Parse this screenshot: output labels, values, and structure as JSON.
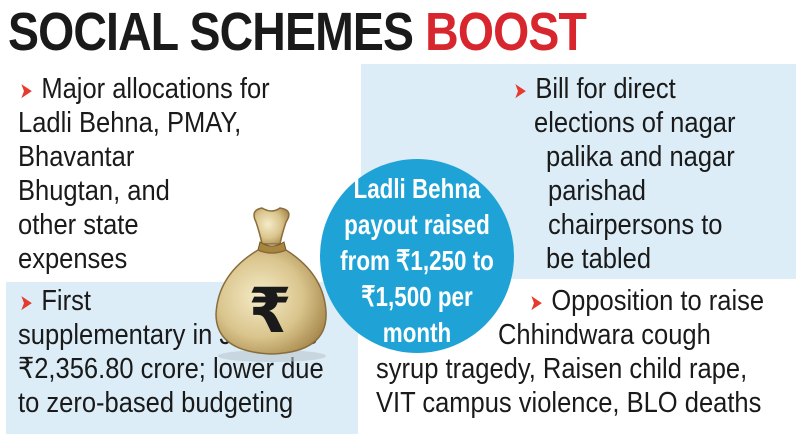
{
  "headline": {
    "part1": "SOCIAL SCHEMES ",
    "part2": "BOOST"
  },
  "colors": {
    "accent_red": "#d7262d",
    "arrow_red": "#e53a2d",
    "circle_blue": "#1fa3d6",
    "panel_blue": "#dcedf7"
  },
  "icons": {
    "bullet": "red-arrow-icon",
    "bag": "rupee-money-bag-icon"
  },
  "arrow_glyph": "➤",
  "top_left": {
    "lines": [
      "Major allocations for",
      "Ladli Behna, PMAY,",
      "Bhavantar",
      "Bhugtan, and",
      "other state",
      "expenses"
    ]
  },
  "top_right": {
    "lines": [
      "Bill for direct",
      "elections of nagar",
      "palika and nagar",
      "parishad",
      "chairpersons to",
      "be tabled"
    ]
  },
  "center": {
    "lines": [
      "Ladli Behna",
      "payout raised",
      "from ₹1,250 to",
      "₹1,500 per",
      "month"
    ]
  },
  "bottom_left": {
    "lines": [
      "First",
      "supplementary in July was",
      "₹2,356.80 crore; lower due",
      "to zero-based budgeting"
    ]
  },
  "bottom_right": {
    "lines": [
      "Opposition to raise",
      "Chhindwara cough",
      "syrup tragedy, Raisen child rape,",
      "VIT campus violence, BLO deaths"
    ]
  },
  "bag_symbol": "₹"
}
